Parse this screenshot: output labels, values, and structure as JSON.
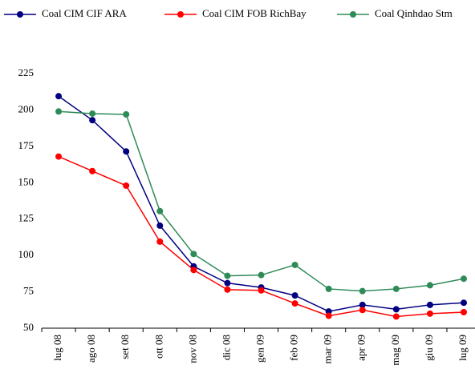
{
  "chart_data": {
    "type": "line",
    "categories": [
      "lug 08",
      "ago 08",
      "set 08",
      "ott 08",
      "nov 08",
      "dic 08",
      "gen 09",
      "feb 09",
      "mar 09",
      "apr 09",
      "mag 09",
      "giu 09",
      "lug 09"
    ],
    "series": [
      {
        "name": "Coal CIM CIF ARA",
        "color": "#000080",
        "values": [
          209.5,
          193,
          171.5,
          120.5,
          92.5,
          81,
          78,
          72.5,
          61.5,
          66,
          63,
          66,
          67.5
        ]
      },
      {
        "name": "Coal CIM FOB RichBay",
        "color": "#ff0000",
        "values": [
          168,
          158,
          148,
          109.5,
          90,
          76.5,
          76,
          67,
          58.5,
          62.5,
          58,
          60,
          61
        ]
      },
      {
        "name": "Coal Qinhdao Stm",
        "color": "#2e8b57",
        "values": [
          199,
          197.5,
          197,
          130.5,
          101,
          86,
          86.5,
          93.5,
          77,
          75.5,
          77,
          79.5,
          84
        ]
      }
    ],
    "ylim": [
      50,
      225
    ],
    "yticks": [
      50,
      75,
      100,
      125,
      150,
      175,
      200,
      225
    ],
    "grid": false,
    "legend": "top"
  }
}
